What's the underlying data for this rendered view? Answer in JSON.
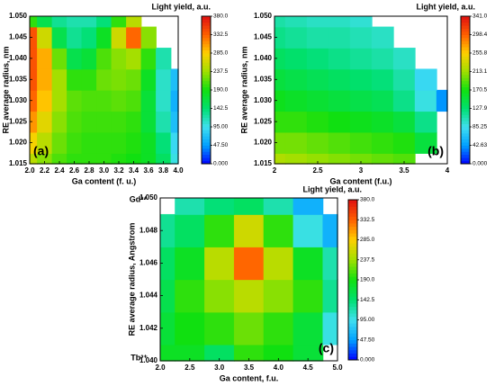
{
  "chart_data": [
    {
      "type": "contour",
      "title": "Light yield, a.u.",
      "x_label": "Ga content (f. u.)",
      "y_label": "RE average radius, nm",
      "panel_label": "(a)",
      "x": [
        2.0,
        2.2,
        2.4,
        2.6,
        2.8,
        3.0,
        3.2,
        3.4,
        3.6,
        3.8,
        4.0
      ],
      "y": [
        1.015,
        1.02,
        1.025,
        1.03,
        1.035,
        1.04,
        1.045,
        1.05
      ],
      "z": [
        [
          250,
          230,
          210,
          200,
          200,
          200,
          195,
          190,
          180,
          150,
          100
        ],
        [
          280,
          250,
          220,
          205,
          200,
          200,
          200,
          195,
          180,
          140,
          90
        ],
        [
          310,
          270,
          230,
          210,
          205,
          205,
          205,
          200,
          170,
          120,
          70
        ],
        [
          330,
          290,
          240,
          215,
          210,
          210,
          215,
          210,
          170,
          110,
          60
        ],
        [
          340,
          300,
          240,
          200,
          200,
          220,
          225,
          220,
          180,
          110,
          70
        ],
        [
          340,
          300,
          220,
          160,
          170,
          210,
          230,
          240,
          200,
          120,
          null
        ],
        [
          340,
          260,
          160,
          130,
          140,
          180,
          260,
          330,
          230,
          null,
          null
        ],
        [
          200,
          160,
          130,
          120,
          120,
          140,
          200,
          250,
          null,
          null,
          null
        ]
      ],
      "xlim": [
        2.0,
        4.0
      ],
      "ylim": [
        1.015,
        1.05
      ],
      "zlim": [
        0,
        380
      ],
      "xticks": [
        {
          "value": 2.0,
          "label": "2.0"
        },
        2.2,
        2.4,
        2.6,
        2.8,
        {
          "value": 3.0,
          "label": "3.0"
        },
        3.2,
        3.4,
        3.6,
        3.8,
        {
          "value": 4.0,
          "label": "4.0"
        }
      ],
      "yticks": [
        1.015,
        {
          "value": 1.02,
          "label": "1.020"
        },
        1.025,
        {
          "value": 1.03,
          "label": "1.030"
        },
        1.035,
        {
          "value": 1.04,
          "label": "1.040"
        },
        1.045,
        {
          "value": 1.05,
          "label": "1.050"
        }
      ],
      "zticks": [
        {
          "value": 0,
          "label": "0.000"
        },
        {
          "value": 47.5,
          "label": "47.50"
        },
        {
          "value": 95,
          "label": "95.00"
        },
        142.5,
        {
          "value": 190,
          "label": "190.0"
        },
        237.5,
        {
          "value": 285,
          "label": "285.0"
        },
        332.5,
        {
          "value": 380,
          "label": "380.0"
        }
      ],
      "colormap": [
        "#0000ff",
        "#00a0ff",
        "#40e0f0",
        "#00e070",
        "#10e010",
        "#a0e000",
        "#ffd000",
        "#ff6000",
        "#e01010"
      ]
    },
    {
      "type": "contour",
      "title": "Light yield, a.u.",
      "x_label": "Ga content (f.u.)",
      "y_label": "RE average radius, nm",
      "panel_label": "(b)",
      "x": [
        2.0,
        2.25,
        2.5,
        2.75,
        3.0,
        3.25,
        3.5,
        3.75,
        4.0
      ],
      "y": [
        1.015,
        1.02,
        1.025,
        1.03,
        1.035,
        1.04,
        1.045,
        1.05
      ],
      "z": [
        [
          220,
          215,
          210,
          205,
          200,
          195,
          190,
          null,
          null
        ],
        [
          200,
          200,
          195,
          190,
          185,
          180,
          175,
          150,
          null
        ],
        [
          180,
          180,
          175,
          170,
          165,
          160,
          150,
          120,
          null
        ],
        [
          165,
          160,
          155,
          150,
          145,
          140,
          120,
          90,
          40
        ],
        [
          150,
          145,
          140,
          135,
          130,
          125,
          110,
          80,
          null
        ],
        [
          135,
          130,
          125,
          120,
          115,
          110,
          100,
          null,
          null
        ],
        [
          120,
          115,
          110,
          110,
          105,
          100,
          null,
          null,
          null
        ],
        [
          110,
          105,
          100,
          100,
          95,
          null,
          null,
          null,
          null
        ]
      ],
      "xlim": [
        2,
        4
      ],
      "ylim": [
        1.015,
        1.05
      ],
      "zlim": [
        0,
        341
      ],
      "xticks": [
        2,
        2.5,
        3,
        3.5,
        4
      ],
      "yticks": [
        1.015,
        {
          "value": 1.02,
          "label": "1.020"
        },
        1.025,
        {
          "value": 1.03,
          "label": "1.030"
        },
        1.035,
        {
          "value": 1.04,
          "label": "1.040"
        },
        1.045,
        {
          "value": 1.05,
          "label": "1.050"
        }
      ],
      "zticks": [
        {
          "value": 0,
          "label": "0.000"
        },
        42.63,
        85.25,
        127.9,
        170.5,
        213.1,
        255.8,
        298.4,
        {
          "value": 341,
          "label": "341.0"
        }
      ],
      "colormap": [
        "#0000ff",
        "#00a0ff",
        "#40e0f0",
        "#00e070",
        "#10e010",
        "#a0e000",
        "#ffd000",
        "#ff6000",
        "#e01010"
      ]
    },
    {
      "type": "contour",
      "title": "Light yield, a.u.",
      "x_label": "Ga content, f.u.",
      "y_label": "RE average radius, Angstrom",
      "panel_label": "(c)",
      "annotations": [
        "Gd³⁺",
        "Tb³⁺"
      ],
      "x": [
        2.0,
        2.5,
        3.0,
        3.5,
        4.0,
        4.5,
        5.0
      ],
      "y": [
        1.04,
        1.042,
        1.044,
        1.046,
        1.048,
        1.05
      ],
      "z": [
        [
          180,
          180,
          150,
          200,
          190,
          170,
          null
        ],
        [
          170,
          190,
          200,
          220,
          200,
          170,
          100
        ],
        [
          160,
          200,
          230,
          250,
          230,
          200,
          130
        ],
        [
          150,
          180,
          250,
          330,
          250,
          180,
          120
        ],
        [
          130,
          150,
          200,
          260,
          200,
          100,
          60
        ],
        [
          null,
          120,
          140,
          150,
          120,
          60,
          null
        ]
      ],
      "xlim": [
        2.0,
        5.0
      ],
      "ylim": [
        1.04,
        1.05
      ],
      "zlim": [
        0,
        380
      ],
      "xticks": [
        {
          "value": 2.0,
          "label": "2.0"
        },
        2.5,
        {
          "value": 3.0,
          "label": "3.0"
        },
        3.5,
        {
          "value": 4.0,
          "label": "4.0"
        },
        4.5,
        {
          "value": 5.0,
          "label": "5.0"
        }
      ],
      "yticks": [
        {
          "value": 1.04,
          "label": "1.040"
        },
        1.042,
        1.044,
        1.046,
        1.048,
        {
          "value": 1.05,
          "label": "1.050"
        }
      ],
      "zticks": [
        {
          "value": 0,
          "label": "0.000"
        },
        {
          "value": 47.5,
          "label": "47.50"
        },
        {
          "value": 95,
          "label": "95.00"
        },
        142.5,
        {
          "value": 190,
          "label": "190.0"
        },
        237.5,
        {
          "value": 285,
          "label": "285.0"
        },
        332.5,
        {
          "value": 380,
          "label": "380.0"
        }
      ],
      "colormap": [
        "#0000ff",
        "#00a0ff",
        "#40e0f0",
        "#00e070",
        "#10e010",
        "#a0e000",
        "#ffd000",
        "#ff6000",
        "#e01010"
      ]
    }
  ]
}
